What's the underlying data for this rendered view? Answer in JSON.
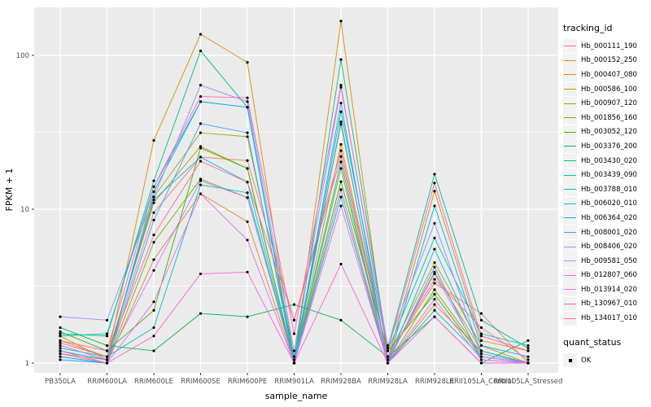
{
  "figure": {
    "x_axis_title": "sample_name",
    "y_axis_title": "FPKM + 1",
    "legend": {
      "tracking_title": "tracking_id",
      "quant_title": "quant_status",
      "quant_items": [
        {
          "label": "OK"
        }
      ]
    },
    "colors": {
      "panel_bg": "#EBEBEB",
      "grid": "#FFFFFF",
      "tick_text": "#4D4D4D",
      "tick_mark": "#333333",
      "point": "#000000",
      "legend_key_bg": "#F2F2F2"
    }
  },
  "chart_data": {
    "type": "line",
    "title": "",
    "xlabel": "sample_name",
    "ylabel": "FPKM + 1",
    "y_scale": "log10",
    "ylim": [
      1,
      200
    ],
    "y_ticks": [
      1,
      10,
      100
    ],
    "y_minor": [
      3.162,
      31.62
    ],
    "grid": true,
    "legend_position": "right",
    "point_label": "OK",
    "categories": [
      "PB350LA",
      "RRIM600LA",
      "RRIM600LE",
      "RRIM600SE",
      "RRIM600PE",
      "RRIM901LA",
      "RRIM928BA",
      "RRIM928LA",
      "RRIM928LE",
      "RRII105LA_Control",
      "RRII105LA_Stressed"
    ],
    "series": [
      {
        "name": "Hb_000111_190",
        "color": "#F8766D",
        "values": [
          1.3,
          1.05,
          9.5,
          21.8,
          20.7,
          1.9,
          22.0,
          1.1,
          3.3,
          2.1,
          1.0
        ]
      },
      {
        "name": "Hb_000152_250",
        "color": "#E88526",
        "values": [
          1.2,
          1.0,
          4.7,
          12.6,
          8.3,
          1.0,
          13.4,
          1.0,
          2.4,
          1.2,
          1.0
        ]
      },
      {
        "name": "Hb_000407_080",
        "color": "#D89000",
        "values": [
          1.5,
          1.05,
          28.0,
          137,
          90,
          1.05,
          167,
          1.05,
          13.1,
          1.4,
          1.2
        ]
      },
      {
        "name": "Hb_000586_100",
        "color": "#C09B00",
        "values": [
          1.4,
          1.1,
          11.0,
          25.6,
          18.4,
          1.0,
          26.4,
          1.1,
          4.5,
          1.3,
          1.0
        ]
      },
      {
        "name": "Hb_000907_120",
        "color": "#A3A500",
        "values": [
          1.15,
          1.05,
          12.0,
          31.4,
          29.6,
          1.1,
          35.6,
          1.05,
          3.9,
          1.2,
          1.0
        ]
      },
      {
        "name": "Hb_001856_160",
        "color": "#7CAE00",
        "values": [
          1.1,
          1.0,
          6.1,
          15.7,
          11.9,
          1.0,
          18.4,
          1.0,
          3.0,
          1.15,
          1.0
        ]
      },
      {
        "name": "Hb_003052_120",
        "color": "#39B600",
        "values": [
          1.6,
          1.2,
          2.2,
          25.0,
          18.4,
          1.0,
          15.1,
          1.2,
          2.8,
          1.1,
          1.0
        ]
      },
      {
        "name": "Hb_003376_200",
        "color": "#00BB4E",
        "values": [
          1.7,
          1.3,
          1.2,
          2.1,
          2.0,
          2.4,
          1.9,
          1.1,
          2.0,
          1.0,
          1.4
        ]
      },
      {
        "name": "Hb_003430_020",
        "color": "#00C087",
        "values": [
          1.55,
          1.5,
          15.3,
          107,
          46,
          1.05,
          94,
          1.25,
          16.9,
          1.9,
          1.25
        ]
      },
      {
        "name": "Hb_003439_090",
        "color": "#00C1A9",
        "values": [
          1.5,
          1.55,
          14.0,
          50,
          46,
          1.0,
          43,
          1.2,
          6.5,
          1.55,
          1.3
        ]
      },
      {
        "name": "Hb_003788_010",
        "color": "#00BFC4",
        "values": [
          1.25,
          1.1,
          1.7,
          14.4,
          12.8,
          1.0,
          12.0,
          1.0,
          2.2,
          1.1,
          1.0
        ]
      },
      {
        "name": "Hb_006020_010",
        "color": "#00BAE0",
        "values": [
          1.2,
          1.05,
          11.5,
          21.8,
          15.0,
          1.0,
          20.3,
          1.0,
          5.5,
          1.2,
          1.0
        ]
      },
      {
        "name": "Hb_006364_020",
        "color": "#00B0F6",
        "values": [
          1.1,
          1.0,
          13.0,
          50,
          46,
          1.0,
          49,
          1.0,
          10.5,
          1.3,
          1.1
        ]
      },
      {
        "name": "Hb_008001_020",
        "color": "#35A2FF",
        "values": [
          1.05,
          1.0,
          8.5,
          36,
          31.4,
          1.0,
          37,
          1.0,
          4.2,
          1.05,
          1.0
        ]
      },
      {
        "name": "Hb_008406_020",
        "color": "#9590FF",
        "values": [
          2.0,
          1.9,
          12.0,
          64,
          50,
          1.2,
          62,
          1.3,
          8.1,
          1.15,
          1.0
        ]
      },
      {
        "name": "Hb_009581_050",
        "color": "#C77CFF",
        "values": [
          1.3,
          1.05,
          4.0,
          15.3,
          11.9,
          1.0,
          13.4,
          1.05,
          3.8,
          1.1,
          1.0
        ]
      },
      {
        "name": "Hb_012807_060",
        "color": "#E76BF3",
        "values": [
          1.2,
          1.0,
          2.5,
          12.6,
          6.3,
          1.0,
          10.5,
          1.0,
          2.6,
          1.05,
          1.0
        ]
      },
      {
        "name": "Hb_013914_020",
        "color": "#FA62DB",
        "values": [
          1.15,
          1.0,
          1.5,
          3.8,
          3.9,
          1.0,
          4.4,
          1.0,
          2.0,
          1.0,
          1.0
        ]
      },
      {
        "name": "Hb_130967_010",
        "color": "#FF62BC",
        "values": [
          1.4,
          1.2,
          14.0,
          54,
          53,
          1.55,
          64,
          1.2,
          14.8,
          1.5,
          1.2
        ]
      },
      {
        "name": "Hb_134017_010",
        "color": "#FF6A98",
        "values": [
          1.35,
          1.1,
          6.8,
          20.5,
          15.0,
          1.9,
          24.0,
          1.1,
          3.5,
          1.7,
          1.05
        ]
      }
    ]
  }
}
